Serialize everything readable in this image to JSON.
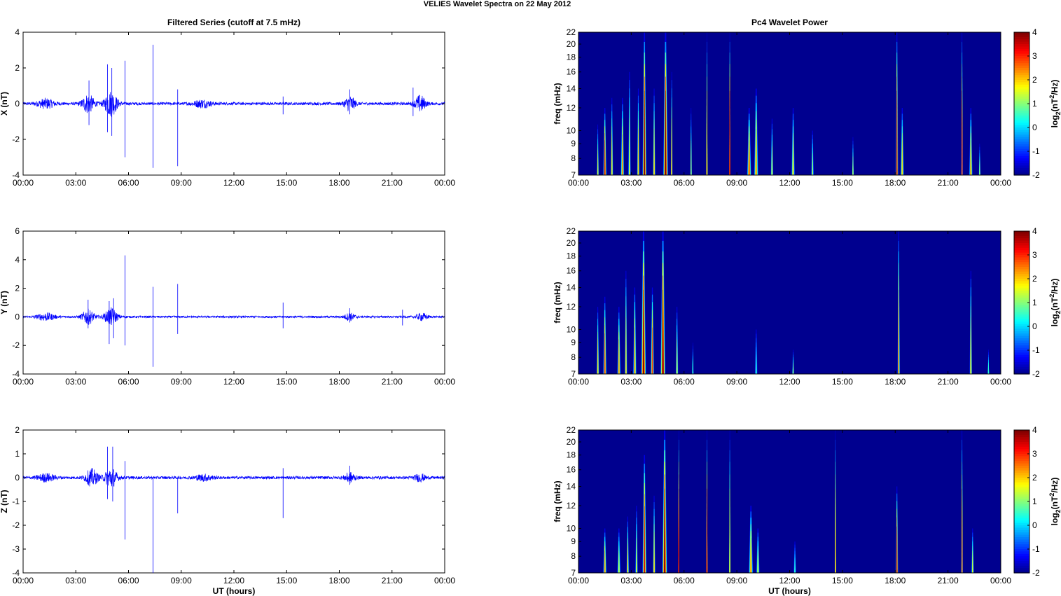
{
  "figure": {
    "title": "VELIES Wavelet Spectra on 22 May      2012"
  },
  "colors": {
    "trace": "#0000ff",
    "axis": "#000000",
    "spectrogram_background": "#00008f"
  },
  "chart_data": [
    {
      "id": "x-series",
      "type": "line",
      "title": "Filtered Series (cutoff at 7.5 mHz)",
      "ylabel": "X (nT)",
      "xlabel": "",
      "xlim": [
        0,
        24
      ],
      "ylim": [
        -4,
        4
      ],
      "yticks": [
        -4,
        -2,
        0,
        2,
        4
      ],
      "xtick_labels": [
        "00:00",
        "03:00",
        "06:00",
        "09:00",
        "12:00",
        "15:00",
        "18:00",
        "21:00",
        "00:00"
      ],
      "noise_base": 0.08,
      "bursts": [
        {
          "t": 1.3,
          "w": 0.5,
          "amp": 0.25
        },
        {
          "t": 3.7,
          "w": 0.35,
          "amp": 0.5
        },
        {
          "t": 5.0,
          "w": 0.35,
          "amp": 0.7
        },
        {
          "t": 10.2,
          "w": 0.5,
          "amp": 0.2
        },
        {
          "t": 18.6,
          "w": 0.3,
          "amp": 0.4
        },
        {
          "t": 22.6,
          "w": 0.3,
          "amp": 0.45
        }
      ],
      "spikes": [
        {
          "t": 3.75,
          "hi": 1.3,
          "lo": -1.2
        },
        {
          "t": 4.8,
          "hi": 2.2,
          "lo": -1.6
        },
        {
          "t": 5.05,
          "hi": 2.0,
          "lo": -1.8
        },
        {
          "t": 5.8,
          "hi": 2.4,
          "lo": -3.0
        },
        {
          "t": 7.4,
          "hi": 3.3,
          "lo": -3.6
        },
        {
          "t": 8.8,
          "hi": 0.8,
          "lo": -3.5
        },
        {
          "t": 14.8,
          "hi": 0.4,
          "lo": -0.6
        },
        {
          "t": 18.6,
          "hi": 0.8,
          "lo": -0.6
        },
        {
          "t": 22.2,
          "hi": 0.9,
          "lo": -0.7
        }
      ]
    },
    {
      "id": "x-power",
      "type": "heatmap",
      "title": "Pc4 Wavelet Power",
      "ylabel": "freq (mHz)",
      "xlabel": "",
      "xlim": [
        0,
        24
      ],
      "ylim": [
        7,
        22
      ],
      "ytick_labels": [
        "7",
        "8",
        "9",
        "10",
        "12",
        "14",
        "16",
        "18",
        "20",
        "22"
      ],
      "ytick_values": [
        7,
        8,
        9,
        10,
        12,
        14,
        16,
        18,
        20,
        22
      ],
      "xtick_labels": [
        "00:00",
        "03:00",
        "06:00",
        "09:00",
        "12:00",
        "15:00",
        "18:00",
        "21:00",
        "00:00"
      ],
      "colorbar": {
        "label": "log2(nT2/Hz)",
        "range": [
          -2,
          4
        ],
        "ticks": [
          "4",
          "3",
          "2",
          "1",
          "0",
          "-1",
          "-2"
        ]
      },
      "events": [
        {
          "t": 1.1,
          "w": 0.12,
          "top": 10.5,
          "power": 1.5
        },
        {
          "t": 1.5,
          "w": 0.2,
          "top": 12,
          "power": 3.5
        },
        {
          "t": 1.9,
          "w": 0.15,
          "top": 13,
          "power": 2.0
        },
        {
          "t": 2.5,
          "w": 0.2,
          "top": 13,
          "power": 2.5
        },
        {
          "t": 2.9,
          "w": 0.15,
          "top": 16,
          "power": 1.5
        },
        {
          "t": 3.4,
          "w": 0.15,
          "top": 14,
          "power": 2.0
        },
        {
          "t": 3.75,
          "w": 0.25,
          "top": 22,
          "power": 4.0
        },
        {
          "t": 4.3,
          "w": 0.15,
          "top": 14,
          "power": 2.0
        },
        {
          "t": 4.95,
          "w": 0.3,
          "top": 22,
          "power": 4.0
        },
        {
          "t": 5.3,
          "w": 0.1,
          "top": 16,
          "power": 2.0
        },
        {
          "t": 6.4,
          "w": 0.1,
          "top": 12,
          "power": 1.2
        },
        {
          "t": 7.3,
          "w": 0.06,
          "top": 22,
          "power": 2.0
        },
        {
          "t": 8.6,
          "w": 0.04,
          "top": 22,
          "power": 3.5
        },
        {
          "t": 9.7,
          "w": 0.25,
          "top": 12,
          "power": 3.0
        },
        {
          "t": 10.1,
          "w": 0.25,
          "top": 14,
          "power": 2.5
        },
        {
          "t": 11.0,
          "w": 0.15,
          "top": 11,
          "power": 1.5
        },
        {
          "t": 12.2,
          "w": 0.2,
          "top": 12,
          "power": 2.0
        },
        {
          "t": 13.3,
          "w": 0.15,
          "top": 10,
          "power": 1.2
        },
        {
          "t": 15.6,
          "w": 0.1,
          "top": 9.5,
          "power": 1.2
        },
        {
          "t": 18.1,
          "w": 0.15,
          "top": 22,
          "power": 3.5
        },
        {
          "t": 18.4,
          "w": 0.2,
          "top": 12,
          "power": 2.0
        },
        {
          "t": 21.8,
          "w": 0.1,
          "top": 22,
          "power": 3.0
        },
        {
          "t": 22.3,
          "w": 0.2,
          "top": 12,
          "power": 2.5
        },
        {
          "t": 22.8,
          "w": 0.1,
          "top": 9,
          "power": 1.0
        }
      ]
    },
    {
      "id": "y-series",
      "type": "line",
      "title": "",
      "ylabel": "Y (nT)",
      "xlabel": "",
      "xlim": [
        0,
        24
      ],
      "ylim": [
        -4,
        6
      ],
      "yticks": [
        -4,
        -2,
        0,
        2,
        4,
        6
      ],
      "xtick_labels": [
        "00:00",
        "03:00",
        "06:00",
        "09:00",
        "12:00",
        "15:00",
        "18:00",
        "21:00",
        "00:00"
      ],
      "noise_base": 0.07,
      "bursts": [
        {
          "t": 1.3,
          "w": 0.5,
          "amp": 0.25
        },
        {
          "t": 3.7,
          "w": 0.35,
          "amp": 0.5
        },
        {
          "t": 5.0,
          "w": 0.35,
          "amp": 0.6
        },
        {
          "t": 18.6,
          "w": 0.3,
          "amp": 0.25
        },
        {
          "t": 22.7,
          "w": 0.3,
          "amp": 0.25
        }
      ],
      "spikes": [
        {
          "t": 3.7,
          "hi": 1.2,
          "lo": -0.8
        },
        {
          "t": 4.9,
          "hi": 1.1,
          "lo": -1.9
        },
        {
          "t": 5.15,
          "hi": 1.3,
          "lo": -1.5
        },
        {
          "t": 5.8,
          "hi": 4.3,
          "lo": -2.0
        },
        {
          "t": 7.4,
          "hi": 2.1,
          "lo": -3.5
        },
        {
          "t": 8.8,
          "hi": 2.3,
          "lo": -1.2
        },
        {
          "t": 14.8,
          "hi": 1.0,
          "lo": -0.8
        },
        {
          "t": 18.6,
          "hi": 0.6,
          "lo": -0.4
        },
        {
          "t": 21.6,
          "hi": 0.5,
          "lo": -0.6
        }
      ]
    },
    {
      "id": "y-power",
      "type": "heatmap",
      "title": "",
      "ylabel": "freq (mHz)",
      "xlabel": "",
      "xlim": [
        0,
        24
      ],
      "ylim": [
        7,
        22
      ],
      "ytick_labels": [
        "7",
        "8",
        "9",
        "10",
        "12",
        "14",
        "16",
        "18",
        "20",
        "22"
      ],
      "ytick_values": [
        7,
        8,
        9,
        10,
        12,
        14,
        16,
        18,
        20,
        22
      ],
      "xtick_labels": [
        "00:00",
        "03:00",
        "06:00",
        "09:00",
        "12:00",
        "15:00",
        "18:00",
        "21:00",
        "00:00"
      ],
      "colorbar": {
        "label": "log2(nT2/Hz)",
        "range": [
          -2,
          4
        ],
        "ticks": [
          "4",
          "3",
          "2",
          "1",
          "0",
          "-1",
          "-2"
        ]
      },
      "events": [
        {
          "t": 1.1,
          "w": 0.15,
          "top": 12,
          "power": 2.0
        },
        {
          "t": 1.5,
          "w": 0.2,
          "top": 13,
          "power": 3.0
        },
        {
          "t": 2.3,
          "w": 0.2,
          "top": 12,
          "power": 2.5
        },
        {
          "t": 2.7,
          "w": 0.15,
          "top": 16,
          "power": 2.0
        },
        {
          "t": 3.2,
          "w": 0.2,
          "top": 14,
          "power": 2.5
        },
        {
          "t": 3.7,
          "w": 0.3,
          "top": 22,
          "power": 4.0
        },
        {
          "t": 4.2,
          "w": 0.2,
          "top": 14,
          "power": 3.0
        },
        {
          "t": 4.8,
          "w": 0.3,
          "top": 22,
          "power": 4.0
        },
        {
          "t": 5.6,
          "w": 0.15,
          "top": 12,
          "power": 1.5
        },
        {
          "t": 6.5,
          "w": 0.08,
          "top": 9,
          "power": 0.5
        },
        {
          "t": 10.1,
          "w": 0.15,
          "top": 10,
          "power": 0.5
        },
        {
          "t": 12.2,
          "w": 0.1,
          "top": 8.5,
          "power": 1.0
        },
        {
          "t": 18.2,
          "w": 0.15,
          "top": 22,
          "power": 2.5
        },
        {
          "t": 22.3,
          "w": 0.15,
          "top": 16,
          "power": 2.0
        },
        {
          "t": 23.3,
          "w": 0.08,
          "top": 8.5,
          "power": 0.5
        }
      ]
    },
    {
      "id": "z-series",
      "type": "line",
      "title": "",
      "ylabel": "Z (nT)",
      "xlabel": "UT (hours)",
      "xlim": [
        0,
        24
      ],
      "ylim": [
        -4,
        2
      ],
      "yticks": [
        -4,
        -3,
        -2,
        -1,
        0,
        1,
        2
      ],
      "xtick_labels": [
        "00:00",
        "03:00",
        "06:00",
        "09:00",
        "12:00",
        "15:00",
        "18:00",
        "21:00",
        "00:00"
      ],
      "noise_base": 0.06,
      "bursts": [
        {
          "t": 1.3,
          "w": 0.5,
          "amp": 0.15
        },
        {
          "t": 3.9,
          "w": 0.35,
          "amp": 0.35
        },
        {
          "t": 5.0,
          "w": 0.35,
          "amp": 0.4
        },
        {
          "t": 10.3,
          "w": 0.5,
          "amp": 0.12
        },
        {
          "t": 18.6,
          "w": 0.3,
          "amp": 0.2
        },
        {
          "t": 22.6,
          "w": 0.3,
          "amp": 0.15
        }
      ],
      "spikes": [
        {
          "t": 4.8,
          "hi": 1.3,
          "lo": -0.9
        },
        {
          "t": 5.1,
          "hi": 1.3,
          "lo": -1.0
        },
        {
          "t": 5.8,
          "hi": 0.7,
          "lo": -2.6
        },
        {
          "t": 7.4,
          "hi": 0.0,
          "lo": -4.0
        },
        {
          "t": 8.8,
          "hi": 0.0,
          "lo": -1.5
        },
        {
          "t": 14.8,
          "hi": 0.4,
          "lo": -1.7
        },
        {
          "t": 18.6,
          "hi": 0.5,
          "lo": -0.3
        }
      ]
    },
    {
      "id": "z-power",
      "type": "heatmap",
      "title": "",
      "ylabel": "freq (mHz)",
      "xlabel": "UT (hours)",
      "xlim": [
        0,
        24
      ],
      "ylim": [
        7,
        22
      ],
      "ytick_labels": [
        "7",
        "8",
        "9",
        "10",
        "12",
        "14",
        "16",
        "18",
        "20",
        "22"
      ],
      "ytick_values": [
        7,
        8,
        9,
        10,
        12,
        14,
        16,
        18,
        20,
        22
      ],
      "xtick_labels": [
        "00:00",
        "03:00",
        "06:00",
        "09:00",
        "12:00",
        "15:00",
        "18:00",
        "21:00",
        "00:00"
      ],
      "colorbar": {
        "label": "log2(nT2/Hz)",
        "range": [
          -2,
          4
        ],
        "ticks": [
          "4",
          "3",
          "2",
          "1",
          "0",
          "-1",
          "-2"
        ]
      },
      "events": [
        {
          "t": 1.5,
          "w": 0.2,
          "top": 10,
          "power": 2.5
        },
        {
          "t": 2.3,
          "w": 0.2,
          "top": 10,
          "power": 1.5
        },
        {
          "t": 2.8,
          "w": 0.15,
          "top": 11,
          "power": 2.0
        },
        {
          "t": 3.3,
          "w": 0.15,
          "top": 12,
          "power": 1.5
        },
        {
          "t": 3.75,
          "w": 0.25,
          "top": 18,
          "power": 3.5
        },
        {
          "t": 4.3,
          "w": 0.15,
          "top": 13,
          "power": 2.0
        },
        {
          "t": 4.9,
          "w": 0.3,
          "top": 22,
          "power": 4.0
        },
        {
          "t": 5.7,
          "w": 0.05,
          "top": 22,
          "power": 3.5
        },
        {
          "t": 7.3,
          "w": 0.05,
          "top": 22,
          "power": 3.0
        },
        {
          "t": 8.6,
          "w": 0.04,
          "top": 22,
          "power": 1.5
        },
        {
          "t": 9.8,
          "w": 0.25,
          "top": 12,
          "power": 2.5
        },
        {
          "t": 10.2,
          "w": 0.2,
          "top": 10,
          "power": 1.5
        },
        {
          "t": 12.3,
          "w": 0.15,
          "top": 9,
          "power": 0.5
        },
        {
          "t": 14.6,
          "w": 0.04,
          "top": 22,
          "power": 2.0
        },
        {
          "t": 18.1,
          "w": 0.15,
          "top": 14,
          "power": 3.5
        },
        {
          "t": 21.8,
          "w": 0.1,
          "top": 22,
          "power": 2.5
        },
        {
          "t": 22.4,
          "w": 0.15,
          "top": 10,
          "power": 1.5
        }
      ]
    }
  ]
}
